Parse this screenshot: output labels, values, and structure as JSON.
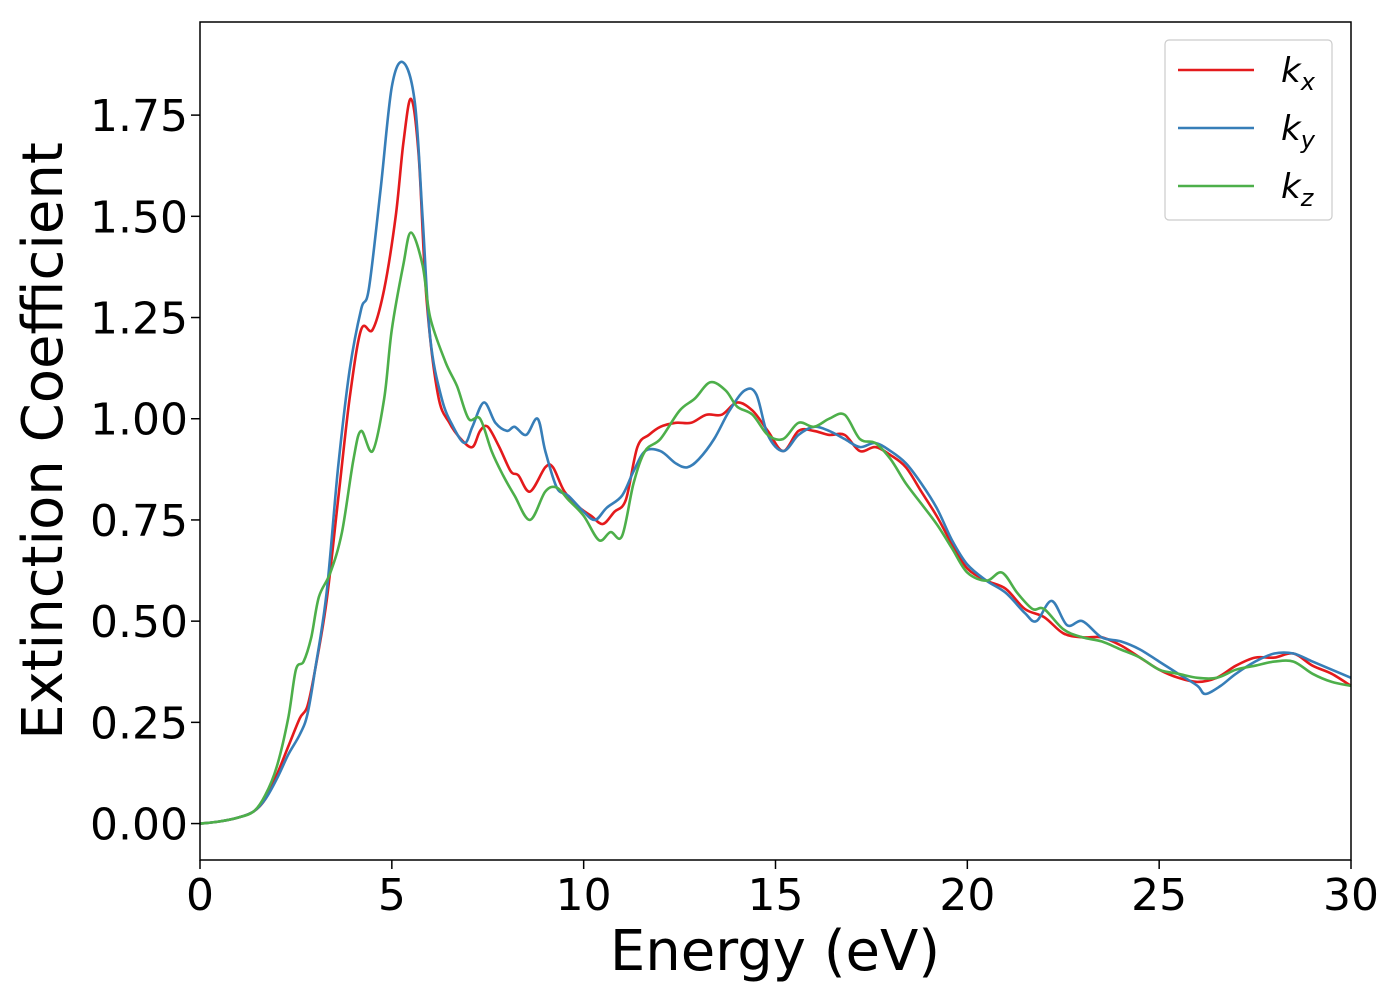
{
  "chart_data": {
    "type": "line",
    "xlabel": "Energy (eV)",
    "ylabel": "Extinction Coefficient",
    "xlim": [
      0,
      30
    ],
    "ylim": [
      -0.09,
      1.98
    ],
    "xticks": [
      0,
      5,
      10,
      15,
      20,
      25,
      30
    ],
    "xtick_labels": [
      "0",
      "5",
      "10",
      "15",
      "20",
      "25",
      "30"
    ],
    "yticks": [
      0,
      0.25,
      0.5,
      0.75,
      1.0,
      1.25,
      1.5,
      1.75
    ],
    "ytick_labels": [
      "0.00",
      "0.25",
      "0.50",
      "0.75",
      "1.00",
      "1.25",
      "1.50",
      "1.75"
    ],
    "grid": false,
    "legend_position": "top-right",
    "series": [
      {
        "name": "k",
        "subscript": "x",
        "color": "#e41a1c",
        "points": [
          [
            0,
            0
          ],
          [
            0.5,
            0.005
          ],
          [
            1.0,
            0.015
          ],
          [
            1.4,
            0.03
          ],
          [
            1.7,
            0.06
          ],
          [
            2.0,
            0.12
          ],
          [
            2.3,
            0.19
          ],
          [
            2.6,
            0.26
          ],
          [
            2.8,
            0.29
          ],
          [
            3.0,
            0.38
          ],
          [
            3.3,
            0.55
          ],
          [
            3.6,
            0.8
          ],
          [
            3.9,
            1.05
          ],
          [
            4.2,
            1.22
          ],
          [
            4.5,
            1.22
          ],
          [
            4.8,
            1.32
          ],
          [
            5.1,
            1.5
          ],
          [
            5.3,
            1.68
          ],
          [
            5.5,
            1.79
          ],
          [
            5.7,
            1.65
          ],
          [
            5.9,
            1.3
          ],
          [
            6.2,
            1.06
          ],
          [
            6.5,
            0.99
          ],
          [
            6.8,
            0.95
          ],
          [
            7.1,
            0.93
          ],
          [
            7.3,
            0.97
          ],
          [
            7.5,
            0.98
          ],
          [
            7.8,
            0.93
          ],
          [
            8.1,
            0.87
          ],
          [
            8.3,
            0.86
          ],
          [
            8.6,
            0.82
          ],
          [
            9.0,
            0.88
          ],
          [
            9.2,
            0.88
          ],
          [
            9.5,
            0.82
          ],
          [
            9.9,
            0.78
          ],
          [
            10.2,
            0.76
          ],
          [
            10.5,
            0.74
          ],
          [
            10.8,
            0.77
          ],
          [
            11.1,
            0.8
          ],
          [
            11.4,
            0.93
          ],
          [
            11.7,
            0.96
          ],
          [
            12.0,
            0.98
          ],
          [
            12.4,
            0.99
          ],
          [
            12.8,
            0.99
          ],
          [
            13.2,
            1.01
          ],
          [
            13.6,
            1.01
          ],
          [
            14.0,
            1.04
          ],
          [
            14.4,
            1.02
          ],
          [
            14.8,
            0.97
          ],
          [
            15.2,
            0.92
          ],
          [
            15.6,
            0.97
          ],
          [
            16.0,
            0.97
          ],
          [
            16.4,
            0.96
          ],
          [
            16.8,
            0.96
          ],
          [
            17.2,
            0.92
          ],
          [
            17.6,
            0.93
          ],
          [
            18.0,
            0.91
          ],
          [
            18.4,
            0.88
          ],
          [
            18.8,
            0.82
          ],
          [
            19.2,
            0.76
          ],
          [
            19.6,
            0.69
          ],
          [
            20.0,
            0.63
          ],
          [
            20.5,
            0.6
          ],
          [
            21.0,
            0.58
          ],
          [
            21.5,
            0.53
          ],
          [
            22.0,
            0.51
          ],
          [
            22.5,
            0.47
          ],
          [
            23.0,
            0.46
          ],
          [
            23.5,
            0.46
          ],
          [
            24.0,
            0.44
          ],
          [
            24.5,
            0.41
          ],
          [
            25.0,
            0.38
          ],
          [
            25.5,
            0.36
          ],
          [
            26.0,
            0.35
          ],
          [
            26.5,
            0.36
          ],
          [
            27.0,
            0.39
          ],
          [
            27.5,
            0.41
          ],
          [
            28.0,
            0.41
          ],
          [
            28.5,
            0.42
          ],
          [
            29.0,
            0.39
          ],
          [
            29.5,
            0.37
          ],
          [
            30.0,
            0.34
          ]
        ]
      },
      {
        "name": "k",
        "subscript": "y",
        "color": "#377eb8",
        "points": [
          [
            0,
            0
          ],
          [
            0.5,
            0.005
          ],
          [
            1.0,
            0.015
          ],
          [
            1.4,
            0.03
          ],
          [
            1.7,
            0.06
          ],
          [
            2.0,
            0.11
          ],
          [
            2.3,
            0.17
          ],
          [
            2.6,
            0.22
          ],
          [
            2.8,
            0.27
          ],
          [
            3.0,
            0.38
          ],
          [
            3.3,
            0.57
          ],
          [
            3.6,
            0.88
          ],
          [
            3.9,
            1.12
          ],
          [
            4.2,
            1.27
          ],
          [
            4.4,
            1.32
          ],
          [
            4.7,
            1.56
          ],
          [
            5.0,
            1.82
          ],
          [
            5.3,
            1.88
          ],
          [
            5.6,
            1.78
          ],
          [
            5.8,
            1.5
          ],
          [
            6.0,
            1.2
          ],
          [
            6.3,
            1.05
          ],
          [
            6.6,
            0.98
          ],
          [
            6.9,
            0.94
          ],
          [
            7.1,
            0.98
          ],
          [
            7.4,
            1.04
          ],
          [
            7.7,
            0.99
          ],
          [
            8.0,
            0.97
          ],
          [
            8.2,
            0.98
          ],
          [
            8.5,
            0.96
          ],
          [
            8.8,
            1.0
          ],
          [
            9.0,
            0.92
          ],
          [
            9.3,
            0.83
          ],
          [
            9.6,
            0.81
          ],
          [
            10.0,
            0.77
          ],
          [
            10.3,
            0.75
          ],
          [
            10.6,
            0.78
          ],
          [
            11.0,
            0.81
          ],
          [
            11.3,
            0.87
          ],
          [
            11.6,
            0.92
          ],
          [
            12.0,
            0.92
          ],
          [
            12.4,
            0.89
          ],
          [
            12.7,
            0.88
          ],
          [
            13.0,
            0.9
          ],
          [
            13.4,
            0.95
          ],
          [
            13.8,
            1.02
          ],
          [
            14.2,
            1.07
          ],
          [
            14.5,
            1.06
          ],
          [
            14.8,
            0.96
          ],
          [
            15.2,
            0.92
          ],
          [
            15.6,
            0.96
          ],
          [
            16.0,
            0.98
          ],
          [
            16.4,
            0.97
          ],
          [
            16.8,
            0.95
          ],
          [
            17.2,
            0.93
          ],
          [
            17.6,
            0.94
          ],
          [
            18.0,
            0.92
          ],
          [
            18.4,
            0.89
          ],
          [
            18.8,
            0.84
          ],
          [
            19.2,
            0.78
          ],
          [
            19.6,
            0.7
          ],
          [
            20.0,
            0.64
          ],
          [
            20.5,
            0.6
          ],
          [
            21.0,
            0.57
          ],
          [
            21.5,
            0.52
          ],
          [
            21.8,
            0.5
          ],
          [
            22.2,
            0.55
          ],
          [
            22.6,
            0.49
          ],
          [
            23.0,
            0.5
          ],
          [
            23.5,
            0.46
          ],
          [
            24.0,
            0.45
          ],
          [
            24.5,
            0.43
          ],
          [
            25.0,
            0.4
          ],
          [
            25.5,
            0.37
          ],
          [
            26.0,
            0.34
          ],
          [
            26.2,
            0.32
          ],
          [
            26.6,
            0.34
          ],
          [
            27.0,
            0.37
          ],
          [
            27.5,
            0.4
          ],
          [
            28.0,
            0.42
          ],
          [
            28.5,
            0.42
          ],
          [
            29.0,
            0.4
          ],
          [
            29.5,
            0.38
          ],
          [
            30.0,
            0.36
          ]
        ]
      },
      {
        "name": "k",
        "subscript": "z",
        "color": "#4daf4a",
        "points": [
          [
            0,
            0
          ],
          [
            0.5,
            0.005
          ],
          [
            1.0,
            0.015
          ],
          [
            1.4,
            0.03
          ],
          [
            1.7,
            0.07
          ],
          [
            2.0,
            0.14
          ],
          [
            2.3,
            0.26
          ],
          [
            2.5,
            0.38
          ],
          [
            2.7,
            0.4
          ],
          [
            2.9,
            0.46
          ],
          [
            3.1,
            0.56
          ],
          [
            3.4,
            0.62
          ],
          [
            3.7,
            0.72
          ],
          [
            4.0,
            0.9
          ],
          [
            4.2,
            0.97
          ],
          [
            4.5,
            0.92
          ],
          [
            4.8,
            1.05
          ],
          [
            5.0,
            1.22
          ],
          [
            5.3,
            1.38
          ],
          [
            5.5,
            1.46
          ],
          [
            5.8,
            1.38
          ],
          [
            6.0,
            1.25
          ],
          [
            6.4,
            1.14
          ],
          [
            6.7,
            1.08
          ],
          [
            7.0,
            1.0
          ],
          [
            7.3,
            1.0
          ],
          [
            7.6,
            0.92
          ],
          [
            7.9,
            0.86
          ],
          [
            8.2,
            0.81
          ],
          [
            8.6,
            0.75
          ],
          [
            9.0,
            0.82
          ],
          [
            9.3,
            0.83
          ],
          [
            9.6,
            0.8
          ],
          [
            10.0,
            0.76
          ],
          [
            10.4,
            0.7
          ],
          [
            10.7,
            0.72
          ],
          [
            11.0,
            0.71
          ],
          [
            11.3,
            0.84
          ],
          [
            11.6,
            0.92
          ],
          [
            12.0,
            0.95
          ],
          [
            12.5,
            1.02
          ],
          [
            12.9,
            1.05
          ],
          [
            13.3,
            1.09
          ],
          [
            13.7,
            1.07
          ],
          [
            14.0,
            1.03
          ],
          [
            14.4,
            1.01
          ],
          [
            14.8,
            0.96
          ],
          [
            15.2,
            0.95
          ],
          [
            15.6,
            0.99
          ],
          [
            16.0,
            0.98
          ],
          [
            16.4,
            1.0
          ],
          [
            16.8,
            1.01
          ],
          [
            17.2,
            0.95
          ],
          [
            17.6,
            0.94
          ],
          [
            18.0,
            0.9
          ],
          [
            18.4,
            0.84
          ],
          [
            18.8,
            0.79
          ],
          [
            19.2,
            0.74
          ],
          [
            19.6,
            0.68
          ],
          [
            20.0,
            0.62
          ],
          [
            20.5,
            0.6
          ],
          [
            20.9,
            0.62
          ],
          [
            21.3,
            0.57
          ],
          [
            21.7,
            0.53
          ],
          [
            22.0,
            0.53
          ],
          [
            22.5,
            0.48
          ],
          [
            23.0,
            0.46
          ],
          [
            23.5,
            0.45
          ],
          [
            24.0,
            0.43
          ],
          [
            24.5,
            0.41
          ],
          [
            25.0,
            0.38
          ],
          [
            25.5,
            0.37
          ],
          [
            26.0,
            0.36
          ],
          [
            26.5,
            0.36
          ],
          [
            27.0,
            0.38
          ],
          [
            27.5,
            0.39
          ],
          [
            28.0,
            0.4
          ],
          [
            28.5,
            0.4
          ],
          [
            29.0,
            0.37
          ],
          [
            29.5,
            0.35
          ],
          [
            30.0,
            0.34
          ]
        ]
      }
    ]
  }
}
